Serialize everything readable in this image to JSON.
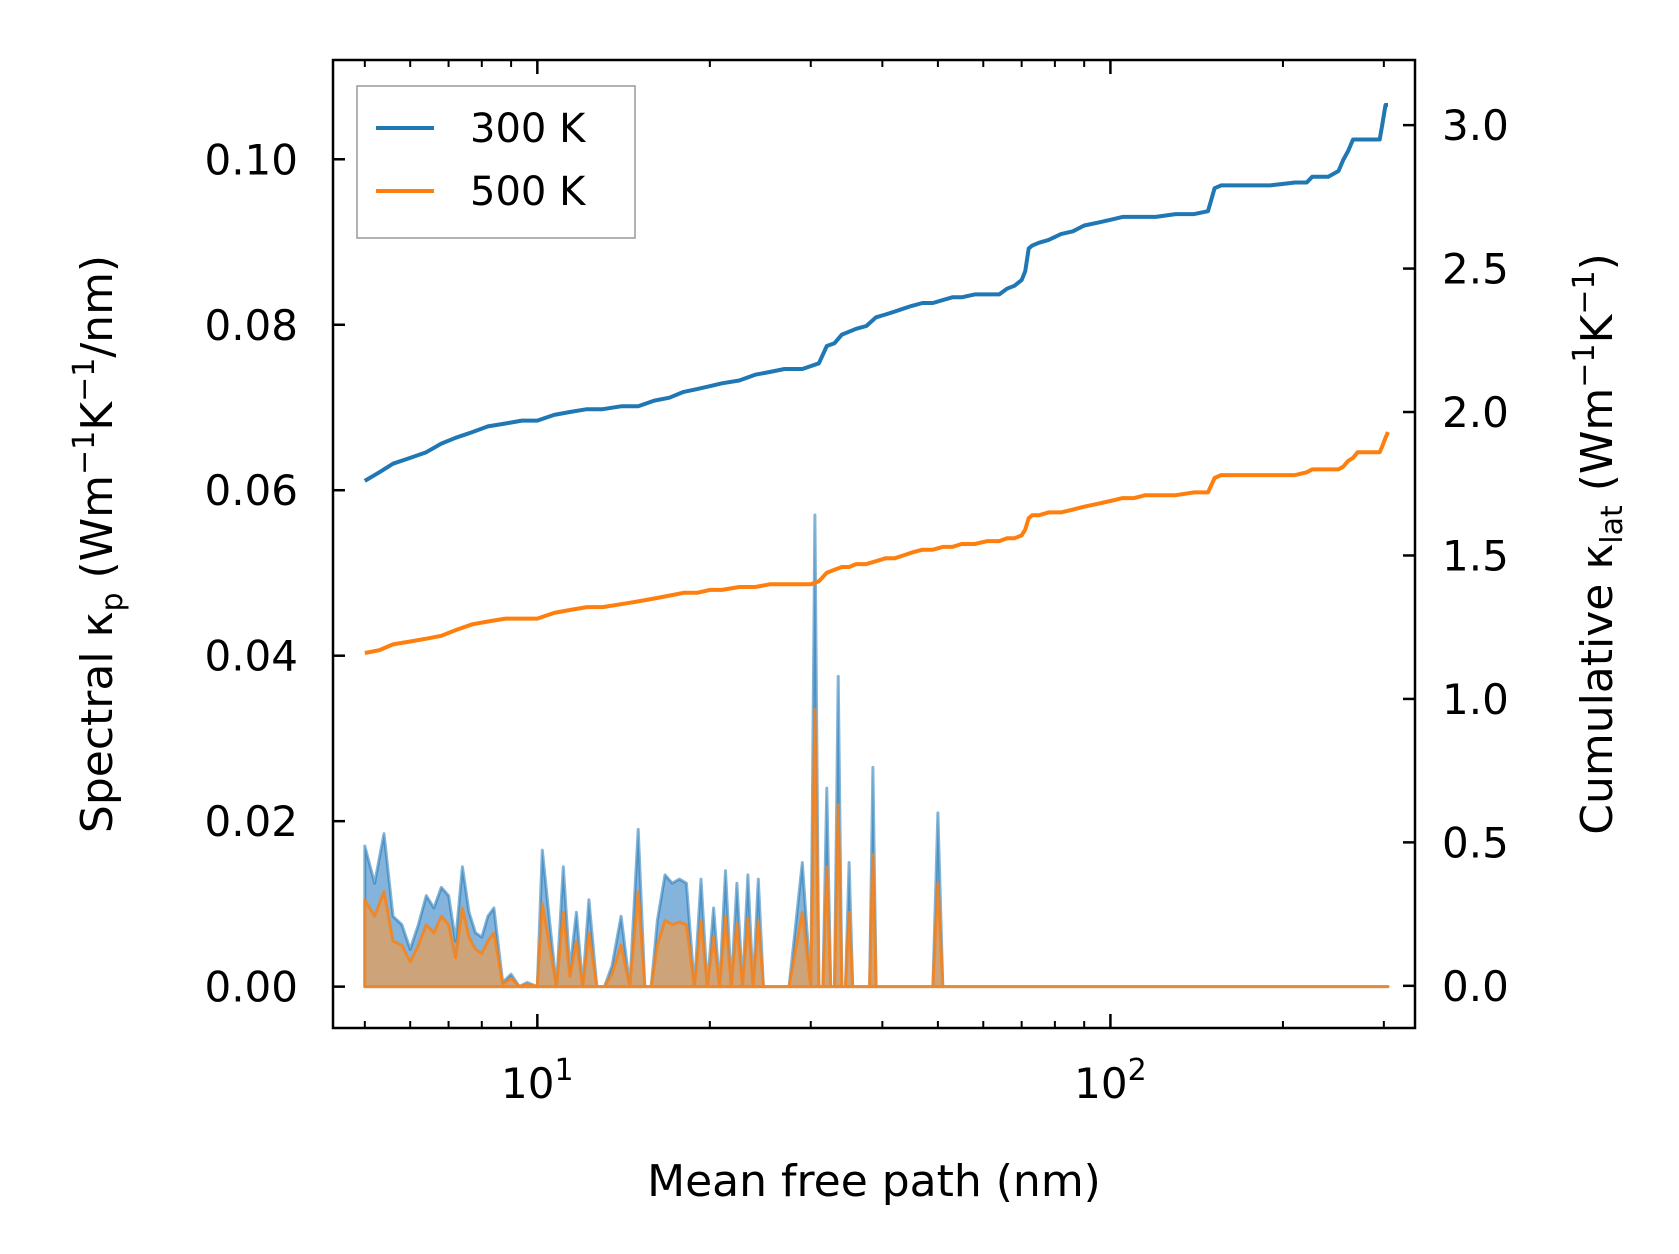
{
  "chart_data": {
    "type": "line",
    "xlabel": "Mean free path (nm)",
    "ylabel_left": {
      "main": "Spectral κ",
      "sub": "p",
      "rest": " (Wm",
      "sup1": "−1",
      "mid": "K",
      "sup2": "−1",
      "end": "/nm)"
    },
    "ylabel_right": {
      "main": "Cumulative κ",
      "sub": "lat",
      "rest": " (Wm",
      "sup1": "−1",
      "mid": "K",
      "sup2": "−1",
      "end": ")"
    },
    "xscale": "log",
    "xlim": [
      4.4,
      340
    ],
    "ylim_left": [
      -0.005,
      0.112
    ],
    "ylim_right": [
      -0.147,
      3.227
    ],
    "x_ticks": [
      {
        "value": 10,
        "base": "10",
        "exp": "1"
      },
      {
        "value": 100,
        "base": "10",
        "exp": "2"
      }
    ],
    "y_ticks_left": [
      "0.00",
      "0.02",
      "0.04",
      "0.06",
      "0.08",
      "0.10"
    ],
    "y_ticks_right": [
      "0.0",
      "0.5",
      "1.0",
      "1.5",
      "2.0",
      "2.5",
      "3.0"
    ],
    "legend": {
      "position": "top-left",
      "entries": [
        "300 K",
        "500 K"
      ]
    },
    "colors": {
      "s300": "#1f77b4",
      "s500": "#ff7f0e",
      "fill300": "#5b9bd0",
      "fill500": "#d9a068"
    },
    "spectral": {
      "axis": "left",
      "x": [
        5,
        5.2,
        5.4,
        5.6,
        5.8,
        6,
        6.2,
        6.4,
        6.6,
        6.8,
        7,
        7.2,
        7.4,
        7.6,
        7.8,
        8,
        8.2,
        8.4,
        8.7,
        9,
        9.3,
        9.6,
        10,
        10.2,
        10.5,
        10.8,
        11.1,
        11.4,
        11.7,
        12,
        12.3,
        12.7,
        13.1,
        13.5,
        14,
        14.5,
        15,
        15.4,
        15.8,
        16.2,
        16.7,
        17.2,
        17.7,
        18.2,
        18.8,
        19.3,
        19.8,
        20.3,
        20.8,
        21.3,
        21.8,
        22.3,
        22.8,
        23.3,
        23.8,
        24.3,
        24.8,
        25.3,
        25.8,
        26.3,
        27.5,
        29,
        30,
        30.5,
        31,
        31.5,
        32,
        32.5,
        33,
        33.5,
        34,
        34.5,
        35,
        35.5,
        36,
        36.5,
        37,
        37.5,
        38,
        38.5,
        39,
        39.5,
        40,
        40.5,
        41,
        41.5,
        42,
        42.5,
        43,
        43.5,
        44,
        44.5,
        45,
        46,
        47,
        48,
        49,
        50,
        51,
        52,
        53,
        54,
        55,
        56,
        58,
        60,
        62,
        63,
        64,
        65,
        66,
        67,
        68,
        69,
        70,
        71,
        72,
        73,
        74,
        75,
        76,
        77,
        78,
        80,
        82,
        84,
        85,
        86,
        87,
        88,
        89,
        90,
        92,
        94,
        96,
        97,
        98,
        99,
        100,
        102,
        104,
        106,
        108,
        109,
        110,
        111,
        112,
        114,
        120,
        130,
        140,
        145,
        148,
        150,
        152,
        154,
        156,
        158,
        160,
        165,
        170,
        200,
        210,
        215,
        218,
        220,
        222,
        225,
        230,
        240,
        250,
        260,
        265,
        270,
        275,
        278,
        280,
        290,
        295,
        300,
        302,
        305
      ],
      "s300": [
        0.017,
        0.0125,
        0.0185,
        0.0085,
        0.0075,
        0.0045,
        0.0075,
        0.011,
        0.0095,
        0.012,
        0.011,
        0.0055,
        0.0145,
        0.009,
        0.0065,
        0.006,
        0.0085,
        0.0095,
        0.0005,
        0.0015,
        0.0,
        0.0005,
        0.0,
        0.0165,
        0.008,
        0.0,
        0.0145,
        0.002,
        0.009,
        0.0,
        0.0105,
        0.0,
        0.0,
        0.0025,
        0.0085,
        0.0,
        0.019,
        0.0,
        0.0,
        0.008,
        0.0135,
        0.0125,
        0.013,
        0.0125,
        0.0,
        0.013,
        0.0,
        0.0095,
        0.0,
        0.014,
        0.0,
        0.0125,
        0.0,
        0.0135,
        0.0,
        0.013,
        0.0,
        0.0,
        0.0,
        0.0,
        0.0,
        0.015,
        0.0,
        0.057,
        0.0,
        0.0,
        0.024,
        0.0,
        0.0,
        0.0375,
        0.0,
        0.0,
        0.015,
        0.0,
        0.0,
        0.0,
        0.0,
        0.0,
        0.0,
        0.0265,
        0.0,
        0.0,
        0.0,
        0.0,
        0.0,
        0.0,
        0.0,
        0.0,
        0.0,
        0.0,
        0.0,
        0.0,
        0.0,
        0.0,
        0.0,
        0.0,
        0.0,
        0.021,
        0.0,
        0.0,
        0.0,
        0.0,
        0.0,
        0.0,
        0.0,
        0.0,
        0.0,
        0.0,
        0.0,
        0.0,
        0.0,
        0.0,
        0.0,
        0.0,
        0.0,
        0.0,
        0.0,
        0.0,
        0.0,
        0.0,
        0.0,
        0.0,
        0.0,
        0.0,
        0.0,
        0.0,
        0.0,
        0.0,
        0.0,
        0.0,
        0.0,
        0.0,
        0.0,
        0.0,
        0.0,
        0.0,
        0.0,
        0.0,
        0.0,
        0.0,
        0.0,
        0.0,
        0.0,
        0.0,
        0.0,
        0.0,
        0.0,
        0.0,
        0.0,
        0.0,
        0.0,
        0.0,
        0.0,
        0.0,
        0.0,
        0.0,
        0.0,
        0.0,
        0.0,
        0.0,
        0.0,
        0.0,
        0.0,
        0.0,
        0.0,
        0.0,
        0.0,
        0.0,
        0.0,
        0.0,
        0.0,
        0.0,
        0.0,
        0.0,
        0.0,
        0.0,
        0.0,
        0.0,
        0.0,
        0.0,
        0.0,
        0.0
      ],
      "s500": [
        0.0105,
        0.0085,
        0.0115,
        0.0055,
        0.005,
        0.003,
        0.005,
        0.0075,
        0.0065,
        0.0085,
        0.0075,
        0.0035,
        0.0095,
        0.006,
        0.0045,
        0.004,
        0.0055,
        0.0065,
        0.0003,
        0.001,
        0.0,
        0.0003,
        0.0,
        0.01,
        0.005,
        0.0,
        0.009,
        0.0012,
        0.0055,
        0.0,
        0.0065,
        0.0,
        0.0,
        0.0015,
        0.005,
        0.0,
        0.0115,
        0.0,
        0.0,
        0.005,
        0.008,
        0.0075,
        0.0078,
        0.0075,
        0.0,
        0.008,
        0.0,
        0.006,
        0.0,
        0.0085,
        0.0,
        0.0077,
        0.0,
        0.0083,
        0.0,
        0.008,
        0.0,
        0.0,
        0.0,
        0.0,
        0.0,
        0.009,
        0.0,
        0.0335,
        0.0,
        0.0,
        0.0145,
        0.0,
        0.0,
        0.022,
        0.0,
        0.0,
        0.009,
        0.0,
        0.0,
        0.0,
        0.0,
        0.0,
        0.0,
        0.016,
        0.0,
        0.0,
        0.0,
        0.0,
        0.0,
        0.0,
        0.0,
        0.0,
        0.0,
        0.0,
        0.0,
        0.0,
        0.0,
        0.0,
        0.0,
        0.0,
        0.0,
        0.0125,
        0.0,
        0.0,
        0.0,
        0.0,
        0.0,
        0.0,
        0.0,
        0.0,
        0.0,
        0.0,
        0.0,
        0.0,
        0.0,
        0.0,
        0.0,
        0.0,
        0.0,
        0.0,
        0.0,
        0.0,
        0.0,
        0.0,
        0.0,
        0.0,
        0.0,
        0.0,
        0.0,
        0.0,
        0.0,
        0.0,
        0.0,
        0.0,
        0.0,
        0.0,
        0.0,
        0.0,
        0.0,
        0.0,
        0.0,
        0.0,
        0.0,
        0.0,
        0.0,
        0.0,
        0.0,
        0.0,
        0.0,
        0.0,
        0.0,
        0.0,
        0.0,
        0.0,
        0.0,
        0.0,
        0.0,
        0.0,
        0.0,
        0.0,
        0.0,
        0.0,
        0.0,
        0.0,
        0.0,
        0.0,
        0.0,
        0.0,
        0.0,
        0.0,
        0.0,
        0.0,
        0.0,
        0.0,
        0.0,
        0.0,
        0.0,
        0.0,
        0.0,
        0.0,
        0.0,
        0.0,
        0.0,
        0.0,
        0.0,
        0.0
      ]
    },
    "cumulative": {
      "axis": "right",
      "x": [
        5,
        5.3,
        5.6,
        6,
        6.4,
        6.8,
        7.2,
        7.7,
        8.2,
        8.8,
        9.4,
        10,
        10.7,
        11.4,
        12.2,
        13,
        14,
        15,
        16,
        17,
        18,
        19,
        20,
        21,
        22.5,
        24,
        25.5,
        27,
        29,
        30,
        31,
        32,
        33,
        34,
        35,
        36,
        37.5,
        39,
        40.5,
        42,
        43.5,
        45,
        47,
        49,
        51,
        53,
        55,
        58,
        61,
        64,
        66,
        68,
        70,
        71,
        72,
        73,
        75,
        78,
        82,
        86,
        90,
        95,
        100,
        105,
        110,
        115,
        120,
        130,
        140,
        148,
        152,
        156,
        160,
        170,
        190,
        210,
        220,
        225,
        240,
        250,
        255,
        260,
        265,
        270,
        280,
        290,
        295,
        298,
        302,
        305
      ],
      "s300": [
        1.76,
        1.79,
        1.82,
        1.84,
        1.86,
        1.89,
        1.91,
        1.93,
        1.95,
        1.96,
        1.97,
        1.97,
        1.99,
        2.0,
        2.01,
        2.01,
        2.02,
        2.02,
        2.04,
        2.05,
        2.07,
        2.08,
        2.09,
        2.1,
        2.11,
        2.13,
        2.14,
        2.15,
        2.15,
        2.16,
        2.17,
        2.23,
        2.24,
        2.27,
        2.28,
        2.29,
        2.3,
        2.33,
        2.34,
        2.35,
        2.36,
        2.37,
        2.38,
        2.38,
        2.39,
        2.4,
        2.4,
        2.41,
        2.41,
        2.41,
        2.43,
        2.44,
        2.46,
        2.49,
        2.57,
        2.58,
        2.59,
        2.6,
        2.62,
        2.63,
        2.65,
        2.66,
        2.67,
        2.68,
        2.68,
        2.68,
        2.68,
        2.69,
        2.69,
        2.7,
        2.78,
        2.79,
        2.79,
        2.79,
        2.79,
        2.8,
        2.8,
        2.82,
        2.82,
        2.84,
        2.88,
        2.91,
        2.95,
        2.95,
        2.95,
        2.95,
        2.95,
        3.0,
        3.07,
        3.07
      ],
      "s500": [
        1.16,
        1.17,
        1.19,
        1.2,
        1.21,
        1.22,
        1.24,
        1.26,
        1.27,
        1.28,
        1.28,
        1.28,
        1.3,
        1.31,
        1.32,
        1.32,
        1.33,
        1.34,
        1.35,
        1.36,
        1.37,
        1.37,
        1.38,
        1.38,
        1.39,
        1.39,
        1.4,
        1.4,
        1.4,
        1.4,
        1.41,
        1.44,
        1.45,
        1.46,
        1.46,
        1.47,
        1.47,
        1.48,
        1.49,
        1.49,
        1.5,
        1.51,
        1.52,
        1.52,
        1.53,
        1.53,
        1.54,
        1.54,
        1.55,
        1.55,
        1.56,
        1.56,
        1.57,
        1.59,
        1.63,
        1.64,
        1.64,
        1.65,
        1.65,
        1.66,
        1.67,
        1.68,
        1.69,
        1.7,
        1.7,
        1.71,
        1.71,
        1.71,
        1.72,
        1.72,
        1.77,
        1.78,
        1.78,
        1.78,
        1.78,
        1.78,
        1.79,
        1.8,
        1.8,
        1.8,
        1.81,
        1.83,
        1.84,
        1.86,
        1.86,
        1.86,
        1.86,
        1.88,
        1.91,
        1.93
      ]
    }
  }
}
